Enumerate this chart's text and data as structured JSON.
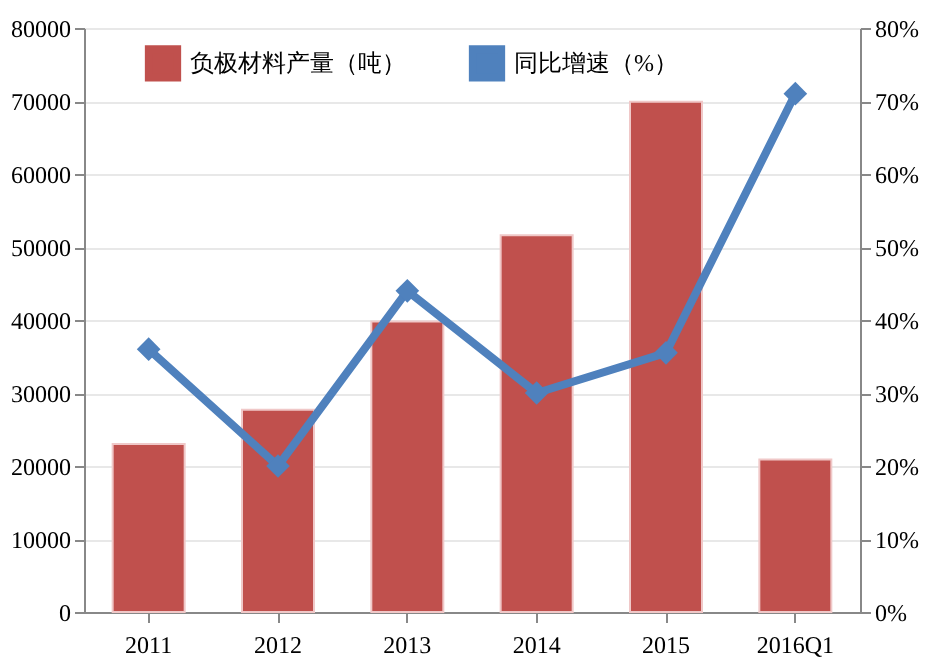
{
  "chart_data": {
    "type": "bar",
    "categories": [
      "2011",
      "2012",
      "2013",
      "2014",
      "2015",
      "2016Q1"
    ],
    "series": [
      {
        "name": "负极材料产量（吨）",
        "color": "#c0504d",
        "values": [
          23000,
          27700,
          39800,
          51600,
          69900,
          20900
        ]
      },
      {
        "name": "同比增速（%）",
        "color": "#4f81bd",
        "type": "line",
        "axis": "y2",
        "marker": "diamond",
        "values": [
          36,
          20,
          44,
          30,
          35.5,
          71
        ]
      }
    ],
    "ylim": [
      0,
      80000
    ],
    "yticks": [
      0,
      10000,
      20000,
      30000,
      40000,
      50000,
      60000,
      70000,
      80000
    ],
    "y2lim": [
      0,
      80
    ],
    "y2ticks": [
      {
        "value": 0,
        "label": "0%"
      },
      {
        "value": 10,
        "label": "10%"
      },
      {
        "value": 20,
        "label": "20%"
      },
      {
        "value": 30,
        "label": "30%"
      },
      {
        "value": 40,
        "label": "40%"
      },
      {
        "value": 50,
        "label": "50%"
      },
      {
        "value": 60,
        "label": "60%"
      },
      {
        "value": 70,
        "label": "70%"
      },
      {
        "value": 80,
        "label": "80%"
      }
    ],
    "grid": "y",
    "legend": "top"
  }
}
